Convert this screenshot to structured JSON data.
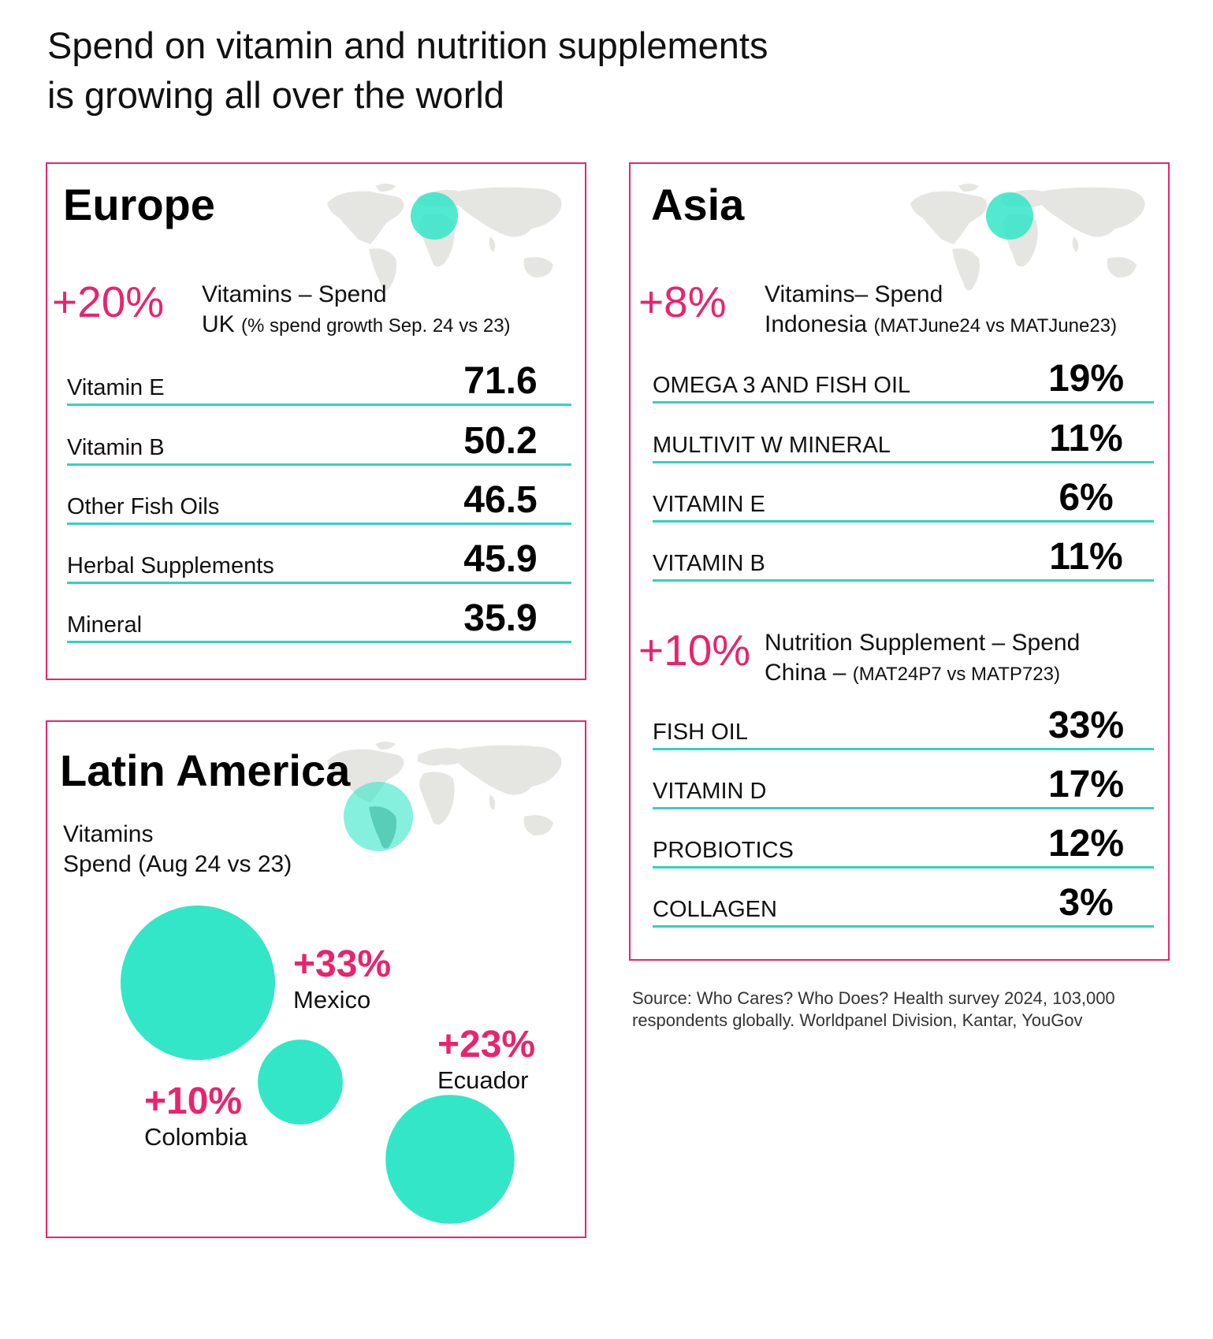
{
  "title": {
    "line1": "Spend on vitamin and nutrition supplements",
    "line2": "is growing all over the world"
  },
  "colors": {
    "accent_pink": "#e8246e",
    "accent_teal": "#33e6c8",
    "rule_teal": "#33d1bd",
    "map_gray": "#e5e5e2"
  },
  "europe": {
    "title": "Europe",
    "growth": "+20%",
    "metric_line1": "Vitamins – Spend",
    "metric_line2_main": "UK",
    "metric_line2_note": "(% spend growth Sep. 24 vs 23)",
    "rows": [
      {
        "label": "Vitamin E",
        "value": "71.6"
      },
      {
        "label": "Vitamin B",
        "value": "50.2"
      },
      {
        "label": "Other Fish Oils",
        "value": "46.5"
      },
      {
        "label": "Herbal Supplements",
        "value": "45.9"
      },
      {
        "label": "Mineral",
        "value": "35.9"
      }
    ]
  },
  "asia": {
    "title": "Asia",
    "indonesia": {
      "growth": "+8%",
      "metric_line1": "Vitamins– Spend",
      "metric_line2_main": "Indonesia",
      "metric_line2_note": "(MATJune24 vs MATJune23)",
      "rows": [
        {
          "label": "OMEGA 3 AND FISH OIL",
          "value": "19%"
        },
        {
          "label": "MULTIVIT W MINERAL",
          "value": "11%"
        },
        {
          "label": "VITAMIN E",
          "value": "6%"
        },
        {
          "label": "VITAMIN B",
          "value": "11%"
        }
      ]
    },
    "china": {
      "growth": "+10%",
      "metric_line1": "Nutrition Supplement – Spend",
      "metric_line2_main": "China –",
      "metric_line2_note": "(MAT24P7 vs MATP723)",
      "rows": [
        {
          "label": "FISH OIL",
          "value": "33%"
        },
        {
          "label": "VITAMIN D",
          "value": "17%"
        },
        {
          "label": "PROBIOTICS",
          "value": "12%"
        },
        {
          "label": "COLLAGEN",
          "value": "3%"
        }
      ]
    }
  },
  "latin_america": {
    "title": "Latin America",
    "subtitle_line1": "Vitamins",
    "subtitle_line2": "Spend (Aug 24 vs 23)"
  },
  "chart_data": {
    "type": "scatter",
    "title": "Latin America",
    "subtitle": "Vitamins Spend (Aug 24 vs 23)",
    "series": [
      {
        "name": "Mexico",
        "label": "+33%",
        "value": 33
      },
      {
        "name": "Ecuador",
        "label": "+23%",
        "value": 23
      },
      {
        "name": "Colombia",
        "label": "+10%",
        "value": 10
      }
    ]
  },
  "source": "Source: Who Cares? Who Does? Health survey 2024, 103,000 respondents globally. Worldpanel Division, Kantar, YouGov"
}
